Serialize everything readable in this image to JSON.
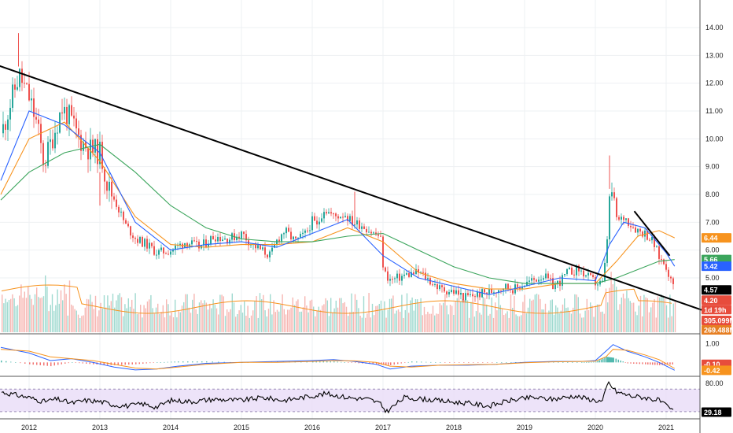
{
  "chart_data": {
    "type": "candlestick",
    "x_labels": [
      "2012",
      "2013",
      "2014",
      "2015",
      "2016",
      "2017",
      "2018",
      "2019",
      "2020",
      "2021"
    ],
    "price_axis": {
      "ticks": [
        "14.00",
        "13.00",
        "12.00",
        "11.00",
        "10.00",
        "9.00",
        "8.00",
        "7.00",
        "6.00",
        "5.00"
      ],
      "range": [
        3.8,
        14.6
      ]
    },
    "price_series": {
      "x": [
        2011.6,
        2011.75,
        2011.85,
        2012.0,
        2012.1,
        2012.2,
        2012.35,
        2012.45,
        2012.55,
        2012.7,
        2012.85,
        2013.0,
        2013.1,
        2013.2,
        2013.35,
        2013.5,
        2013.65,
        2013.8,
        2014.0,
        2014.2,
        2014.4,
        2014.6,
        2014.8,
        2015.0,
        2015.1,
        2015.2,
        2015.4,
        2015.5,
        2015.6,
        2015.75,
        2015.9,
        2016.0,
        2016.05,
        2016.15,
        2016.3,
        2016.45,
        2016.55,
        2016.7,
        2016.85,
        2016.95,
        2017.0,
        2017.1,
        2017.3,
        2017.5,
        2017.65,
        2017.8,
        2018.0,
        2018.15,
        2018.3,
        2018.5,
        2018.7,
        2018.85,
        2019.0,
        2019.1,
        2019.25,
        2019.4,
        2019.5,
        2019.6,
        2019.75,
        2019.9,
        2020.0,
        2020.1,
        2020.15,
        2020.2,
        2020.25,
        2020.3,
        2020.4,
        2020.5,
        2020.6,
        2020.7,
        2020.8,
        2020.9,
        2021.0,
        2021.05,
        2021.12
      ],
      "close": [
        10.2,
        11.5,
        12.3,
        11.4,
        10.5,
        9.1,
        10.3,
        11.1,
        10.8,
        10.0,
        9.6,
        9.5,
        8.3,
        7.8,
        6.9,
        6.4,
        6.2,
        5.9,
        6.0,
        6.3,
        6.1,
        6.5,
        6.4,
        6.6,
        6.3,
        6.1,
        5.8,
        6.4,
        6.7,
        6.3,
        6.6,
        7.1,
        6.8,
        7.5,
        7.2,
        7.3,
        7.0,
        6.9,
        6.6,
        6.5,
        5.2,
        4.9,
        5.1,
        5.2,
        4.9,
        4.6,
        4.5,
        4.3,
        4.4,
        4.5,
        4.7,
        4.6,
        4.8,
        4.9,
        5.1,
        4.7,
        4.9,
        5.2,
        5.3,
        5.0,
        4.8,
        4.8,
        6.2,
        8.3,
        7.8,
        7.0,
        7.2,
        6.9,
        6.7,
        6.6,
        6.3,
        5.7,
        5.4,
        4.9,
        4.57
      ]
    },
    "moving_averages": [
      {
        "color": "#f7931e",
        "last": "6.44",
        "x": [
          2011.6,
          2012.0,
          2012.5,
          2013.0,
          2013.5,
          2014.0,
          2014.5,
          2015.0,
          2015.5,
          2016.0,
          2016.5,
          2017.0,
          2017.5,
          2018.0,
          2018.5,
          2019.0,
          2019.5,
          2020.0,
          2020.3,
          2020.6,
          2020.9,
          2021.12
        ],
        "y": [
          8.0,
          10.0,
          10.6,
          9.2,
          7.2,
          6.2,
          6.1,
          6.2,
          6.2,
          6.3,
          6.8,
          6.3,
          5.2,
          4.8,
          4.6,
          4.6,
          4.8,
          4.8,
          5.6,
          6.5,
          6.7,
          6.44
        ]
      },
      {
        "color": "#3ba55c",
        "last": "5.66",
        "x": [
          2011.6,
          2012.0,
          2012.5,
          2013.0,
          2013.5,
          2014.0,
          2014.5,
          2015.0,
          2015.5,
          2016.0,
          2016.5,
          2017.0,
          2017.5,
          2018.0,
          2018.5,
          2019.0,
          2019.5,
          2020.0,
          2020.3,
          2020.6,
          2020.9,
          2021.12
        ],
        "y": [
          7.8,
          8.8,
          9.5,
          9.8,
          8.8,
          7.6,
          6.8,
          6.4,
          6.3,
          6.3,
          6.5,
          6.6,
          6.0,
          5.4,
          5.0,
          4.8,
          4.8,
          4.8,
          5.0,
          5.3,
          5.6,
          5.66
        ]
      },
      {
        "color": "#2962ff",
        "last": "5.42",
        "x": [
          2011.6,
          2012.0,
          2012.5,
          2013.0,
          2013.5,
          2014.0,
          2014.5,
          2015.0,
          2015.5,
          2016.0,
          2016.5,
          2017.0,
          2017.5,
          2018.0,
          2018.5,
          2019.0,
          2019.5,
          2020.0,
          2020.2,
          2020.4,
          2020.7,
          2021.0,
          2021.12
        ],
        "y": [
          8.5,
          11.0,
          10.5,
          9.5,
          7.0,
          6.0,
          6.2,
          6.3,
          6.1,
          6.6,
          7.1,
          5.8,
          5.0,
          4.7,
          4.4,
          4.7,
          5.0,
          4.9,
          6.2,
          7.0,
          6.8,
          5.9,
          5.42
        ]
      }
    ],
    "price_badges": [
      {
        "value": "6.44",
        "color": "#f7931e",
        "y": 6.44
      },
      {
        "value": "5.66",
        "color": "#3ba55c",
        "y": 5.66
      },
      {
        "value": "5.42",
        "color": "#2962ff",
        "y": 5.42
      },
      {
        "value": "4.57",
        "color": "#000000",
        "y": 4.57
      },
      {
        "value": "4.20",
        "color": "#e74c3c",
        "y": 4.2
      }
    ],
    "countdown_badge": {
      "value": "1d 19h",
      "color": "#e74c3c"
    },
    "trendlines": [
      {
        "x": [
          2011.55,
          2021.5
        ],
        "y": [
          12.65,
          3.85
        ],
        "color": "#000000"
      },
      {
        "x": [
          2020.55,
          2021.05
        ],
        "y": [
          7.4,
          5.8
        ],
        "color": "#000000"
      }
    ],
    "volume": {
      "badges": [
        {
          "value": "305.099M",
          "color": "#e74c3c"
        },
        {
          "value": "269.488M",
          "color": "#e67e22"
        }
      ]
    },
    "macd": {
      "ticks": [
        "1.00"
      ],
      "range": [
        -0.7,
        1.4
      ],
      "badges": [
        {
          "value": "-0.10",
          "color": "#e74c3c",
          "y": -0.1
        },
        {
          "value": "-0.42",
          "color": "#f7931e",
          "y": -0.42
        }
      ],
      "x": [
        2011.6,
        2012.0,
        2012.3,
        2012.6,
        2012.9,
        2013.2,
        2013.5,
        2013.8,
        2014.1,
        2014.5,
        2015.0,
        2015.5,
        2016.0,
        2016.3,
        2016.6,
        2016.9,
        2017.1,
        2017.4,
        2017.8,
        2018.2,
        2018.6,
        2019.0,
        2019.4,
        2019.8,
        2020.0,
        2020.15,
        2020.25,
        2020.45,
        2020.7,
        2020.9,
        2021.12
      ],
      "line": [
        0.8,
        0.5,
        0.1,
        0.2,
        0.0,
        -0.25,
        -0.4,
        -0.35,
        -0.2,
        -0.05,
        0.0,
        0.05,
        0.1,
        0.15,
        0.05,
        -0.1,
        -0.35,
        -0.2,
        -0.15,
        -0.15,
        -0.1,
        0.0,
        0.05,
        0.05,
        0.1,
        0.6,
        0.95,
        0.6,
        0.3,
        0.0,
        -0.42
      ],
      "signal": [
        0.7,
        0.6,
        0.3,
        0.2,
        0.1,
        -0.1,
        -0.3,
        -0.35,
        -0.25,
        -0.1,
        0.0,
        0.0,
        0.05,
        0.1,
        0.08,
        0.0,
        -0.2,
        -0.25,
        -0.15,
        -0.12,
        -0.1,
        -0.02,
        0.03,
        0.05,
        0.07,
        0.3,
        0.7,
        0.65,
        0.4,
        0.15,
        -0.32
      ]
    },
    "rsi": {
      "ticks": [
        "80.00"
      ],
      "range": [
        20,
        90
      ],
      "band": [
        30,
        70
      ],
      "badge": {
        "value": "29.18",
        "color": "#000000",
        "y": 29.18
      },
      "x": [
        2011.6,
        2011.8,
        2012.0,
        2012.2,
        2012.4,
        2012.6,
        2012.8,
        2013.0,
        2013.2,
        2013.4,
        2013.6,
        2013.8,
        2014.0,
        2014.3,
        2014.6,
        2015.0,
        2015.3,
        2015.6,
        2016.0,
        2016.2,
        2016.5,
        2016.8,
        2016.95,
        2017.05,
        2017.3,
        2017.6,
        2017.9,
        2018.2,
        2018.5,
        2018.8,
        2019.1,
        2019.4,
        2019.7,
        2020.0,
        2020.1,
        2020.18,
        2020.3,
        2020.5,
        2020.7,
        2020.9,
        2021.0,
        2021.12
      ],
      "y": [
        65,
        60,
        55,
        48,
        52,
        45,
        50,
        48,
        42,
        40,
        44,
        38,
        50,
        48,
        52,
        50,
        55,
        50,
        58,
        62,
        55,
        52,
        45,
        30,
        55,
        52,
        48,
        45,
        40,
        50,
        55,
        52,
        58,
        50,
        48,
        82,
        65,
        58,
        55,
        50,
        40,
        29.18
      ]
    }
  }
}
